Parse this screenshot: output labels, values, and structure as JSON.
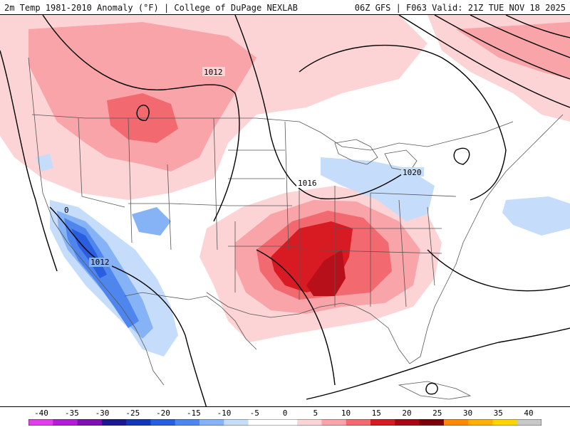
{
  "header": {
    "title_left": "2m Temp 1981-2010 Anomaly (°F) | College of DuPage NEXLAB",
    "title_right": "06Z GFS | F063 Valid: 21Z TUE NOV 18 2025"
  },
  "map": {
    "isobar_labels": [
      "1012",
      "1016",
      "1020",
      "1012",
      "0"
    ]
  },
  "colorbar": {
    "ticks": [
      "-40",
      "-35",
      "-30",
      "-25",
      "-20",
      "-15",
      "-10",
      "-5",
      "0",
      "5",
      "10",
      "15",
      "20",
      "25",
      "30",
      "35",
      "40"
    ],
    "colors": [
      "#e03ee8",
      "#b01fd6",
      "#7e12b0",
      "#1a1a8a",
      "#1238b8",
      "#2a5ee0",
      "#4f86ee",
      "#86b2f6",
      "#c6dcfb",
      "#ffffff",
      "#ffffff",
      "#fcd4d6",
      "#f8a4a8",
      "#f26a70",
      "#d81a22",
      "#a80612",
      "#7a0008",
      "#ff8a00",
      "#ffb000",
      "#ffd400",
      "#c8c8c8"
    ]
  },
  "colors": {
    "warm_light": "#fcd4d6",
    "warm_mid": "#f8a4a8",
    "warm_strong": "#f26a70",
    "warm_hot": "#d81a22",
    "cool_light": "#c6dcfb",
    "cool_mid": "#86b2f6",
    "cool_strong": "#4f86ee",
    "cool_deep": "#2a5ee0"
  }
}
